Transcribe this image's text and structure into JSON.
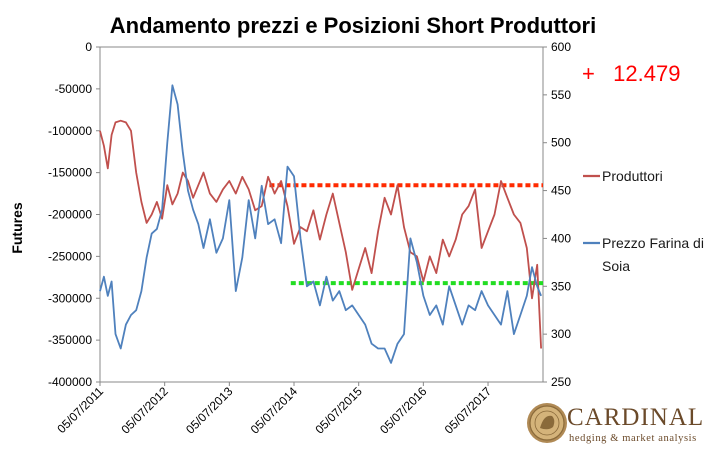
{
  "chart_data": {
    "type": "line",
    "title": "Andamento prezzi e Posizioni Short Produttori",
    "ylabel_left": "Futures",
    "ylabel_right": "",
    "ylim_left": [
      -400000,
      0
    ],
    "ylim_right": [
      250,
      600
    ],
    "yticks_left": [
      "0",
      "-50000",
      "-100000",
      "-150000",
      "-200000",
      "-250000",
      "-300000",
      "-350000",
      "-400000"
    ],
    "yticks_right": [
      "600",
      "550",
      "500",
      "450",
      "400",
      "350",
      "300",
      "250"
    ],
    "xticks": [
      "05/07/2011",
      "05/07/2012",
      "05/07/2013",
      "05/07/2014",
      "05/07/2015",
      "05/07/2016",
      "05/07/2017"
    ],
    "grid": false,
    "legend_position": "right",
    "annotation": "+   12.479",
    "series": [
      {
        "name": "Produttori",
        "axis": "left",
        "color": "#c0504d",
        "x": [
          2011.5,
          2011.56,
          2011.62,
          2011.68,
          2011.74,
          2011.82,
          2011.9,
          2011.98,
          2012.06,
          2012.14,
          2012.22,
          2012.3,
          2012.38,
          2012.46,
          2012.54,
          2012.62,
          2012.7,
          2012.78,
          2012.86,
          2012.94,
          2013.02,
          2013.1,
          2013.2,
          2013.3,
          2013.4,
          2013.5,
          2013.6,
          2013.7,
          2013.8,
          2013.9,
          2014.0,
          2014.1,
          2014.2,
          2014.3,
          2014.4,
          2014.5,
          2014.6,
          2014.7,
          2014.8,
          2014.9,
          2015.0,
          2015.1,
          2015.2,
          2015.3,
          2015.4,
          2015.5,
          2015.6,
          2015.7,
          2015.8,
          2015.9,
          2016.0,
          2016.1,
          2016.2,
          2016.3,
          2016.4,
          2016.5,
          2016.6,
          2016.7,
          2016.8,
          2016.9,
          2017.0,
          2017.1,
          2017.2,
          2017.3,
          2017.4,
          2017.5,
          2017.6,
          2017.7,
          2017.8,
          2017.9,
          2018.0,
          2018.1,
          2018.18,
          2018.26,
          2018.32
        ],
        "values": [
          -100000,
          -118000,
          -145000,
          -105000,
          -90000,
          -88000,
          -90000,
          -100000,
          -150000,
          -185000,
          -210000,
          -200000,
          -185000,
          -205000,
          -165000,
          -188000,
          -175000,
          -150000,
          -160000,
          -180000,
          -165000,
          -150000,
          -175000,
          -185000,
          -170000,
          -160000,
          -175000,
          -155000,
          -170000,
          -195000,
          -190000,
          -155000,
          -175000,
          -160000,
          -190000,
          -235000,
          -215000,
          -220000,
          -195000,
          -230000,
          -200000,
          -175000,
          -210000,
          -245000,
          -290000,
          -265000,
          -240000,
          -270000,
          -220000,
          -180000,
          -200000,
          -165000,
          -215000,
          -245000,
          -250000,
          -280000,
          -250000,
          -270000,
          -230000,
          -250000,
          -230000,
          -200000,
          -190000,
          -170000,
          -240000,
          -220000,
          -200000,
          -160000,
          -180000,
          -200000,
          -210000,
          -240000,
          -300000,
          -260000,
          -360000
        ]
      },
      {
        "name": "Prezzo Farina di Soia",
        "axis": "right",
        "color": "#4f81bd",
        "x": [
          2011.5,
          2011.56,
          2011.62,
          2011.68,
          2011.74,
          2011.82,
          2011.9,
          2011.98,
          2012.06,
          2012.14,
          2012.22,
          2012.3,
          2012.38,
          2012.46,
          2012.54,
          2012.62,
          2012.7,
          2012.78,
          2012.86,
          2012.94,
          2013.02,
          2013.1,
          2013.2,
          2013.3,
          2013.4,
          2013.5,
          2013.6,
          2013.7,
          2013.8,
          2013.9,
          2014.0,
          2014.1,
          2014.2,
          2014.3,
          2014.4,
          2014.5,
          2014.6,
          2014.7,
          2014.8,
          2014.9,
          2015.0,
          2015.1,
          2015.2,
          2015.3,
          2015.4,
          2015.5,
          2015.6,
          2015.7,
          2015.8,
          2015.9,
          2016.0,
          2016.1,
          2016.2,
          2016.3,
          2016.4,
          2016.5,
          2016.6,
          2016.7,
          2016.8,
          2016.9,
          2017.0,
          2017.1,
          2017.2,
          2017.3,
          2017.4,
          2017.5,
          2017.6,
          2017.7,
          2017.8,
          2017.9,
          2018.0,
          2018.1,
          2018.18,
          2018.26,
          2018.32
        ],
        "values": [
          345,
          360,
          340,
          355,
          300,
          285,
          310,
          320,
          325,
          345,
          380,
          405,
          410,
          430,
          500,
          560,
          540,
          490,
          450,
          430,
          415,
          390,
          420,
          385,
          400,
          440,
          345,
          380,
          440,
          400,
          455,
          415,
          420,
          395,
          475,
          465,
          400,
          350,
          355,
          330,
          360,
          335,
          345,
          325,
          330,
          320,
          310,
          290,
          285,
          285,
          270,
          290,
          300,
          400,
          375,
          340,
          320,
          330,
          310,
          350,
          330,
          310,
          330,
          325,
          345,
          330,
          320,
          310,
          345,
          300,
          320,
          340,
          370,
          350,
          340
        ]
      }
    ],
    "reference_lines": [
      {
        "axis": "left",
        "value": -165000,
        "x_start": 2014.12,
        "x_end": 2018.35,
        "color": "#ff2a00"
      },
      {
        "axis": "left",
        "value": -282000,
        "x_start": 2014.45,
        "x_end": 2018.35,
        "color": "#22dd22"
      }
    ]
  },
  "logo": {
    "name": "CARDINAL",
    "tagline": "hedging & market analysis"
  },
  "colors": {
    "produttori": "#c0504d",
    "prezzo": "#4f81bd",
    "annotation": "#ff0000",
    "logo": "#6b4a2a"
  }
}
